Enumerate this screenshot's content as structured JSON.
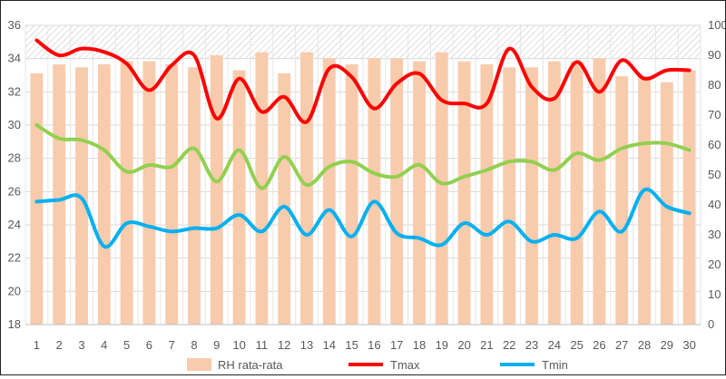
{
  "chart_data": {
    "type": "bar+line",
    "categories": [
      "1",
      "2",
      "3",
      "4",
      "5",
      "6",
      "7",
      "8",
      "9",
      "10",
      "11",
      "12",
      "13",
      "14",
      "15",
      "16",
      "17",
      "18",
      "19",
      "20",
      "21",
      "22",
      "23",
      "24",
      "25",
      "26",
      "27",
      "28",
      "29",
      "30"
    ],
    "left_axis": {
      "min": 18,
      "max": 36,
      "step": 2,
      "ticks": [
        "18",
        "20",
        "22",
        "24",
        "26",
        "28",
        "30",
        "32",
        "34",
        "36"
      ]
    },
    "right_axis": {
      "min": 0,
      "max": 100,
      "step": 10,
      "ticks": [
        "0",
        "10",
        "20",
        "30",
        "40",
        "50",
        "60",
        "70",
        "80",
        "90",
        "100"
      ]
    },
    "grid": true,
    "legend_position": "bottom",
    "series": [
      {
        "name": "RH rata-rata",
        "kind": "bar",
        "axis": "right",
        "color": "#F8CBAD",
        "values": [
          84,
          87,
          86,
          87,
          88,
          88,
          87,
          86,
          90,
          85,
          91,
          84,
          91,
          89,
          87,
          89,
          89,
          88,
          91,
          88,
          87,
          86,
          86,
          88,
          88,
          89,
          83,
          83,
          81,
          85
        ]
      },
      {
        "name": "Tmax",
        "kind": "line",
        "axis": "left",
        "color": "#FF0000",
        "values": [
          35.1,
          34.2,
          34.6,
          34.4,
          33.7,
          32.1,
          33.6,
          34.2,
          30.4,
          32.8,
          30.8,
          31.7,
          30.2,
          33.4,
          32.9,
          31.0,
          32.5,
          33.1,
          31.5,
          31.3,
          31.3,
          34.6,
          32.3,
          31.6,
          33.8,
          32.0,
          33.9,
          32.8,
          33.3,
          33.3
        ]
      },
      {
        "name": "",
        "kind": "line",
        "axis": "left",
        "color": "#92D050",
        "values": [
          30.0,
          29.2,
          29.1,
          28.5,
          27.2,
          27.6,
          27.5,
          28.6,
          26.6,
          28.5,
          26.2,
          28.1,
          26.4,
          27.5,
          27.8,
          27.1,
          26.9,
          27.6,
          26.5,
          26.9,
          27.3,
          27.8,
          27.8,
          27.3,
          28.3,
          27.9,
          28.6,
          28.9,
          28.9,
          28.5
        ]
      },
      {
        "name": "Tmin",
        "kind": "line",
        "axis": "left",
        "color": "#00B0F0",
        "values": [
          25.4,
          25.5,
          25.6,
          22.7,
          24.1,
          23.9,
          23.6,
          23.8,
          23.8,
          24.6,
          23.6,
          25.1,
          23.4,
          24.9,
          23.3,
          25.4,
          23.5,
          23.2,
          22.8,
          24.1,
          23.4,
          24.2,
          23.0,
          23.4,
          23.2,
          24.8,
          23.6,
          26.1,
          25.1,
          24.7
        ]
      }
    ]
  }
}
